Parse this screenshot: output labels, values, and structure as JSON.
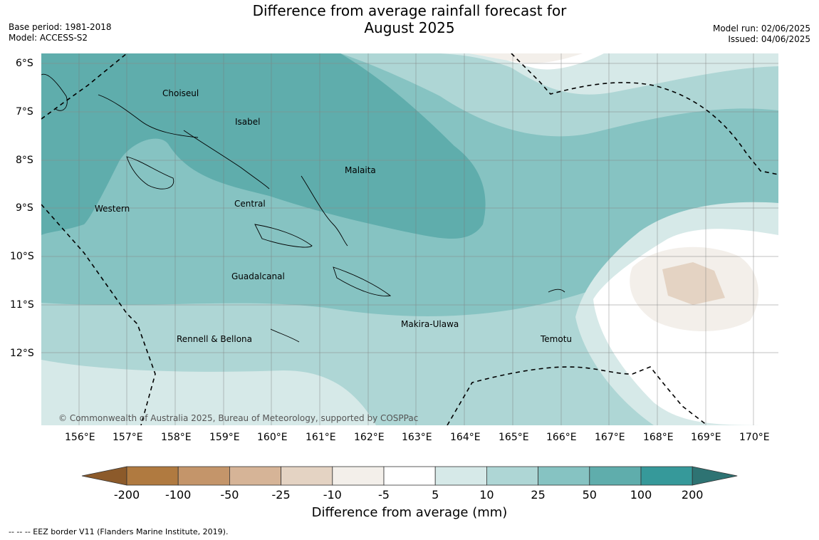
{
  "title": {
    "line1": "Difference from average rainfall forecast for",
    "line2": "August 2025"
  },
  "meta_left": {
    "base_period": "Base period: 1981-2018",
    "model": "Model: ACCESS-S2"
  },
  "meta_right": {
    "model_run": "Model run: 02/06/2025",
    "issued": "Issued: 04/06/2025"
  },
  "map": {
    "lat_labels": [
      "6°S",
      "7°S",
      "8°S",
      "9°S",
      "10°S",
      "11°S",
      "12°S"
    ],
    "lon_labels": [
      "156°E",
      "157°E",
      "158°E",
      "159°E",
      "160°E",
      "161°E",
      "162°E",
      "163°E",
      "164°E",
      "165°E",
      "166°E",
      "167°E",
      "168°E",
      "169°E",
      "170°E"
    ],
    "regions": [
      "Choiseul",
      "Isabel",
      "Malaita",
      "Western",
      "Central",
      "Guadalcanal",
      "Makira-Ulawa",
      "Rennell & Bellona",
      "Temotu"
    ],
    "copyright": "© Commonwealth of Australia 2025, Bureau of Meteorology, supported by COSPPac"
  },
  "colorbar": {
    "title": "Difference from average (mm)",
    "tick_labels": [
      "-200",
      "-100",
      "-50",
      "-25",
      "-10",
      "-5",
      "5",
      "10",
      "25",
      "50",
      "100",
      "200"
    ],
    "colors": [
      "#8c5a2a",
      "#b07a40",
      "#c4956a",
      "#d6b497",
      "#e4d3c3",
      "#f3efea",
      "#ffffff",
      "#d6e9e8",
      "#aed6d5",
      "#86c3c2",
      "#5fadac",
      "#36999a",
      "#2e7373"
    ]
  },
  "footnote": "--  --  -- EEZ border V11 (Flanders Marine Institute, 2019)."
}
